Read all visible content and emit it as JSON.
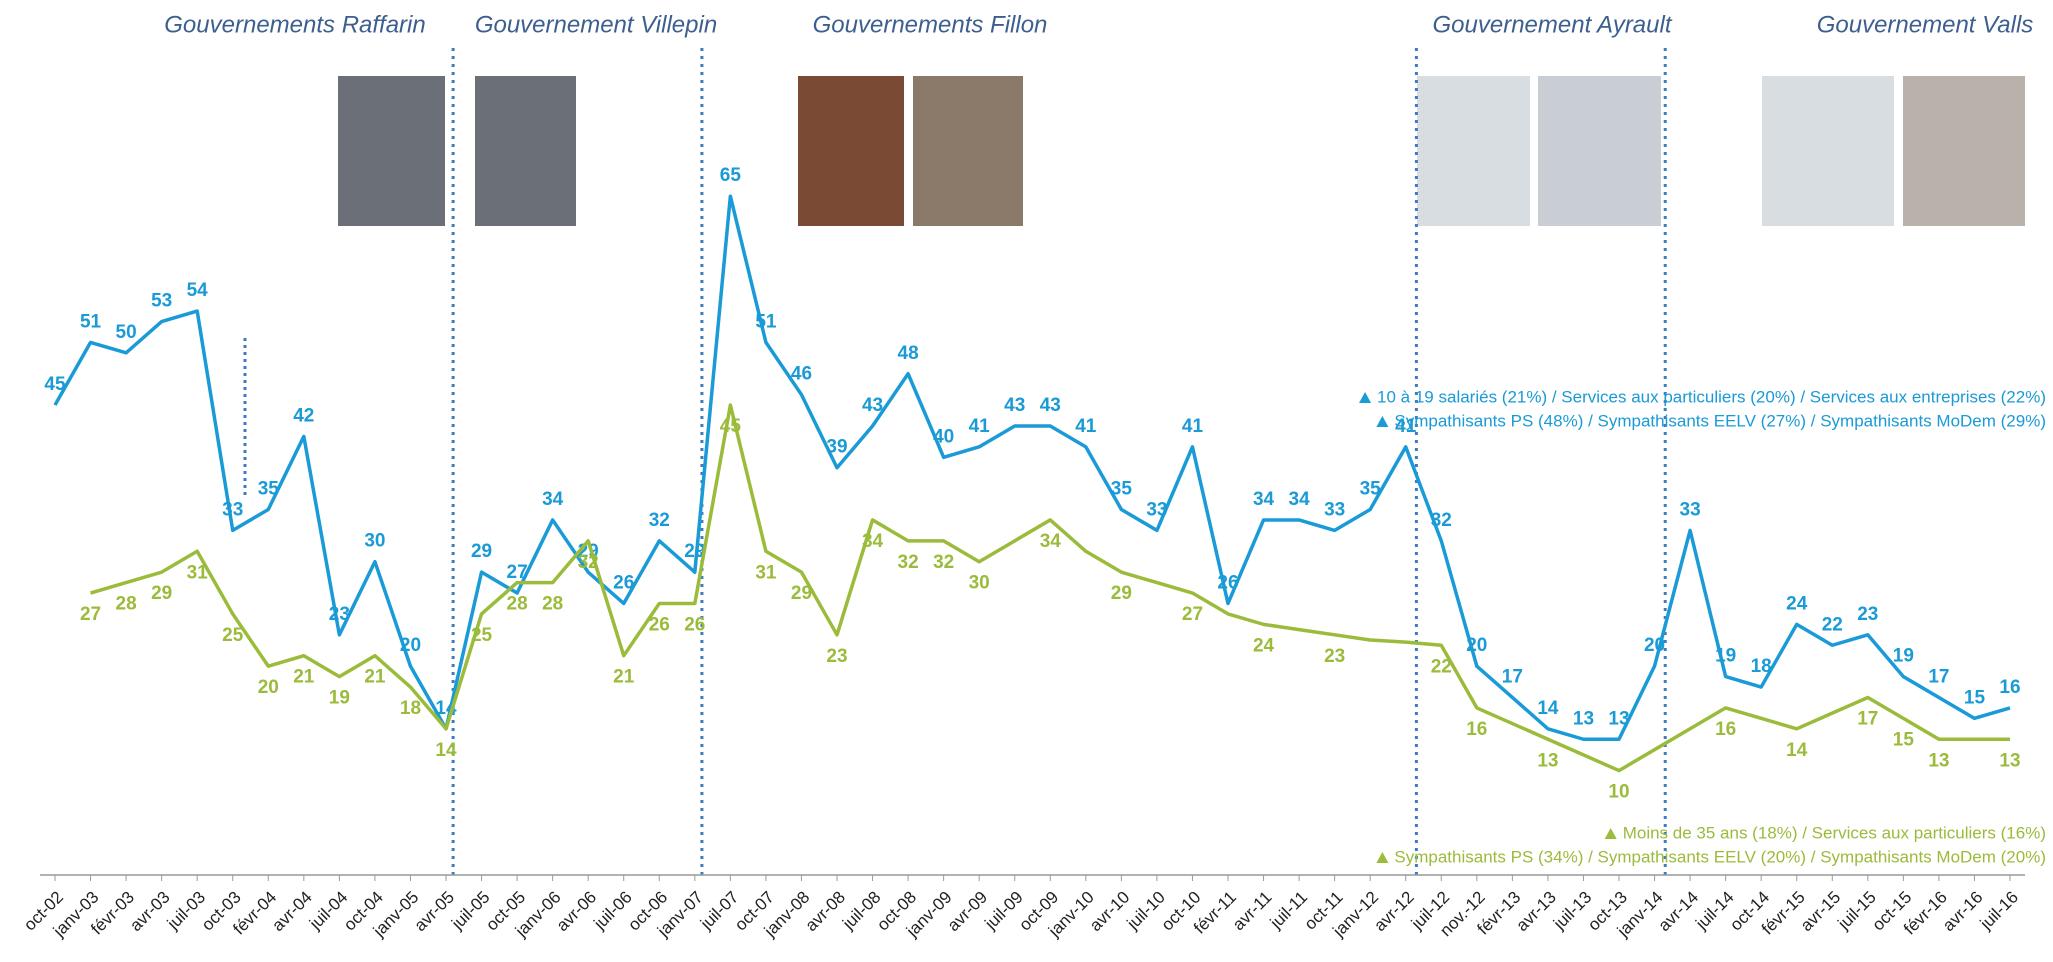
{
  "chart_data": {
    "type": "line",
    "categories": [
      "oct-02",
      "janv-03",
      "févr-03",
      "avr-03",
      "juil-03",
      "oct-03",
      "févr-04",
      "avr-04",
      "juil-04",
      "oct-04",
      "janv-05",
      "avr-05",
      "juil-05",
      "oct-05",
      "janv-06",
      "avr-06",
      "juil-06",
      "oct-06",
      "janv-07",
      "juil-07",
      "oct-07",
      "janv-08",
      "avr-08",
      "juil-08",
      "oct-08",
      "janv-09",
      "avr-09",
      "juil-09",
      "oct-09",
      "janv-10",
      "avr-10",
      "juil-10",
      "oct-10",
      "févr-11",
      "avr-11",
      "juil-11",
      "oct-11",
      "janv-12",
      "avr-12",
      "juil-12",
      "nov.-12",
      "févr-13",
      "avr-13",
      "juil-13",
      "oct-13",
      "janv-14",
      "avr-14",
      "juil-14",
      "oct-14",
      "févr-15",
      "avr-15",
      "juil-15",
      "oct-15",
      "févr-16",
      "avr-16",
      "juil-16"
    ],
    "series": [
      {
        "color": "#1a9ad6",
        "values": [
          45,
          51,
          50,
          53,
          54,
          33,
          35,
          42,
          23,
          30,
          20,
          14,
          29,
          27,
          34,
          29,
          26,
          32,
          29,
          65,
          51,
          46,
          39,
          43,
          48,
          40,
          41,
          43,
          43,
          41,
          35,
          33,
          41,
          26,
          34,
          34,
          33,
          35,
          41,
          32,
          20,
          17,
          14,
          13,
          13,
          20,
          33,
          19,
          18,
          24,
          22,
          23,
          19,
          17,
          15,
          16
        ]
      },
      {
        "color": "#9bbb3b",
        "values": [
          null,
          27,
          28,
          29,
          31,
          25,
          20,
          21,
          19,
          21,
          18,
          14,
          25,
          28,
          28,
          32,
          21,
          26,
          26,
          45,
          31,
          29,
          23,
          34,
          32,
          32,
          30,
          32,
          34,
          31,
          29,
          28,
          27,
          25,
          24,
          23.5,
          23,
          22.5,
          22.3,
          22,
          16,
          14.5,
          13,
          11.5,
          10,
          12,
          14,
          16,
          15,
          14,
          15.5,
          17,
          15,
          13,
          13,
          13
        ],
        "value_labels": [
          null,
          "27",
          "28",
          "29",
          "31",
          "25",
          "20",
          "21",
          "19",
          "21",
          "18",
          "14",
          "25",
          "28",
          "28",
          "32",
          "21",
          "26",
          "26",
          "45",
          "31",
          "29",
          "23",
          "34",
          "32",
          "32",
          "30",
          null,
          "34",
          null,
          "29",
          null,
          "27",
          null,
          "24",
          null,
          "23",
          null,
          null,
          "22",
          "16",
          null,
          "13",
          null,
          "10",
          null,
          null,
          "16",
          null,
          "14",
          null,
          "17",
          "15",
          "13",
          null,
          "13"
        ]
      }
    ],
    "ylim": [
      0,
      70
    ],
    "governments": [
      "Gouvernements Raffarin",
      "Gouvernement Villepin",
      "Gouvernements Fillon",
      "Gouvernement Ayrault",
      "Gouvernement Valls"
    ],
    "notes_series_0": [
      "10 à 19 salariés (21%) / Services aux particuliers (20%) / Services aux entreprises (22%)",
      "Sympathisants PS (48%) / Sympathisants EELV (27%) / Sympathisants MoDem (29%)"
    ],
    "notes_series_1": [
      "Moins de 35 ans (18%) / Services aux particuliers (16%)",
      "Sympathisants PS (34%) / Sympathisants EELV (20%) / Sympathisants MoDem (20%)"
    ]
  }
}
